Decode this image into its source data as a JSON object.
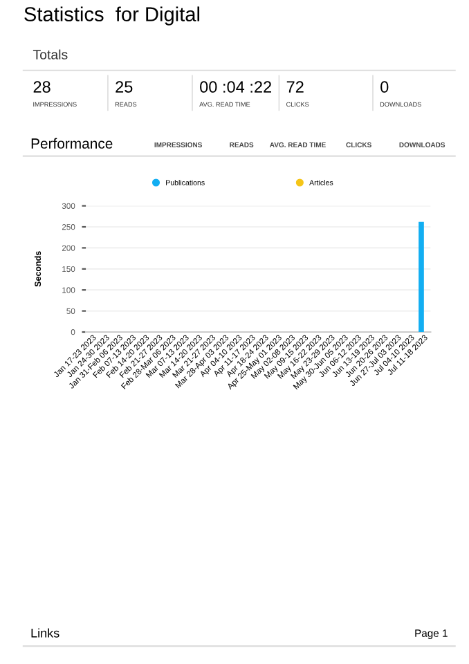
{
  "chart_data": [
    {
      "type": "other",
      "title": "Statistics  for Digital",
      "subtitle": "Totals",
      "categories": [
        "IMPRESSIONS",
        "READS",
        "AVG. READ TIME",
        "CLICKS",
        "DOWNLOADS"
      ],
      "value_labels": [
        "28",
        "25",
        "00 :04 :22",
        "72",
        "0"
      ]
    },
    {
      "type": "bar",
      "title": "Performance",
      "ylabel": "Seconds",
      "annotations": [
        "IMPRESSIONS",
        "READS",
        "AVG. READ TIME",
        "CLICKS",
        "DOWNLOADS",
        "Links",
        "Page 1"
      ],
      "categories": [
        "Jan 17-23 2023",
        "Jan 24-30 2023",
        "Jan 31-Feb 06 2023",
        "Feb 07-13 2023",
        "Feb 14-20 2023",
        "Feb 21-27 2023",
        "Feb 28-Mar 06 2023",
        "Mar 07-13 2023",
        "Mar 14-20 2023",
        "Mar 21-27 2023",
        "Mar 28-Apr 03 2023",
        "Apr 04-10 2023",
        "Apr 11-17 2023",
        "Apr 18-24 2023",
        "Apr 25-May 01 2023",
        "May 02-08 2023",
        "May 09-15 2023",
        "May 16-22 2023",
        "May 23-29 2023",
        "May 30-Jun 05 2023",
        "Jun 06-12 2023",
        "Jun 13-19 2023",
        "Jun 20-26 2023",
        "Jun 27-Jul 03 2023",
        "Jul 04-10 2023",
        "Jul 11-18 2023"
      ],
      "series": [
        {
          "name": "Publications",
          "color": "#12aef2",
          "values": [
            0,
            0,
            0,
            0,
            0,
            0,
            0,
            0,
            0,
            0,
            0,
            0,
            0,
            0,
            0,
            0,
            0,
            0,
            0,
            0,
            0,
            0,
            0,
            0,
            0,
            262
          ]
        },
        {
          "name": "Articles",
          "color": "#f5c518",
          "values": [
            0,
            0,
            0,
            0,
            0,
            0,
            0,
            0,
            0,
            0,
            0,
            0,
            0,
            0,
            0,
            0,
            0,
            0,
            0,
            0,
            0,
            0,
            0,
            0,
            0,
            0
          ]
        }
      ],
      "ylim": [
        0,
        300
      ],
      "yticks": [
        0,
        50,
        100,
        150,
        200,
        250,
        300
      ],
      "grid": "y",
      "legend": "top",
      "marker": "circle"
    }
  ]
}
